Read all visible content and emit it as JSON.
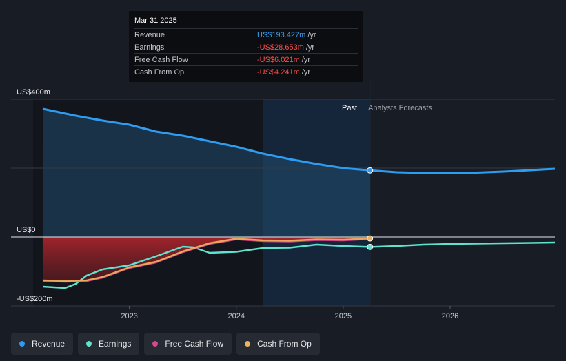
{
  "tooltip": {
    "date": "Mar 31 2025",
    "rows": [
      {
        "name": "Revenue",
        "value": "US$193.427m",
        "unit": "/yr",
        "color": "#3b9ded"
      },
      {
        "name": "Earnings",
        "value": "-US$28.653m",
        "unit": "/yr",
        "color": "#ff4d4d"
      },
      {
        "name": "Free Cash Flow",
        "value": "-US$6.021m",
        "unit": "/yr",
        "color": "#ff4d4d"
      },
      {
        "name": "Cash From Op",
        "value": "-US$4.241m",
        "unit": "/yr",
        "color": "#ff4d4d"
      }
    ]
  },
  "labels": {
    "past": "Past",
    "forecast": "Analysts Forecasts"
  },
  "legend": [
    {
      "label": "Revenue",
      "color": "#2e9cf0"
    },
    {
      "label": "Earnings",
      "color": "#5fe3cf"
    },
    {
      "label": "Free Cash Flow",
      "color": "#d9488f"
    },
    {
      "label": "Cash From Op",
      "color": "#f0b15c"
    }
  ],
  "chart_data": {
    "type": "line",
    "x_unit": "year",
    "xlim": [
      2022.1,
      2026.98
    ],
    "ylim": [
      -200,
      400
    ],
    "y_ticks": [
      {
        "value": 400,
        "label": "US$400m"
      },
      {
        "value": 0,
        "label": "US$0"
      },
      {
        "value": -200,
        "label": "-US$200m"
      }
    ],
    "x_ticks": [
      {
        "value": 2023.0,
        "label": "2023"
      },
      {
        "value": 2024.0,
        "label": "2024"
      },
      {
        "value": 2025.0,
        "label": "2025"
      },
      {
        "value": 2026.0,
        "label": "2026"
      }
    ],
    "past_start": 2024.25,
    "present": 2025.25,
    "series": [
      {
        "name": "Revenue",
        "color": "#2e9cf0",
        "points": [
          [
            2022.19,
            372
          ],
          [
            2022.5,
            352
          ],
          [
            2022.75,
            338
          ],
          [
            2023.0,
            326
          ],
          [
            2023.25,
            306
          ],
          [
            2023.5,
            294
          ],
          [
            2023.75,
            278
          ],
          [
            2024.0,
            262
          ],
          [
            2024.25,
            242
          ],
          [
            2024.5,
            226
          ],
          [
            2024.75,
            212
          ],
          [
            2025.0,
            200
          ],
          [
            2025.25,
            193.4
          ],
          [
            2025.5,
            188
          ],
          [
            2025.75,
            186
          ],
          [
            2026.0,
            186
          ],
          [
            2026.25,
            187
          ],
          [
            2026.5,
            190
          ],
          [
            2026.75,
            194
          ],
          [
            2026.98,
            198
          ]
        ]
      },
      {
        "name": "Earnings",
        "color": "#5fe3cf",
        "points": [
          [
            2022.19,
            -144
          ],
          [
            2022.4,
            -148
          ],
          [
            2022.5,
            -136
          ],
          [
            2022.6,
            -112
          ],
          [
            2022.75,
            -94
          ],
          [
            2023.0,
            -82
          ],
          [
            2023.25,
            -56
          ],
          [
            2023.5,
            -28
          ],
          [
            2023.6,
            -30
          ],
          [
            2023.75,
            -46
          ],
          [
            2024.0,
            -43
          ],
          [
            2024.25,
            -32
          ],
          [
            2024.5,
            -31
          ],
          [
            2024.75,
            -22
          ],
          [
            2025.0,
            -26
          ],
          [
            2025.25,
            -28.7
          ],
          [
            2025.5,
            -26
          ],
          [
            2025.75,
            -22
          ],
          [
            2026.0,
            -20
          ],
          [
            2026.5,
            -18
          ],
          [
            2026.98,
            -16
          ]
        ]
      },
      {
        "name": "Free Cash Flow",
        "color": "#d9488f",
        "points": [
          [
            2022.19,
            -128
          ],
          [
            2022.4,
            -130
          ],
          [
            2022.6,
            -128
          ],
          [
            2022.75,
            -118
          ],
          [
            2023.0,
            -90
          ],
          [
            2023.25,
            -74
          ],
          [
            2023.5,
            -44
          ],
          [
            2023.75,
            -20
          ],
          [
            2024.0,
            -7
          ],
          [
            2024.25,
            -12
          ],
          [
            2024.5,
            -13
          ],
          [
            2024.75,
            -9
          ],
          [
            2025.0,
            -10
          ],
          [
            2025.25,
            -6.0
          ]
        ]
      },
      {
        "name": "Cash From Op",
        "color": "#f0b15c",
        "points": [
          [
            2022.19,
            -126
          ],
          [
            2022.4,
            -128
          ],
          [
            2022.6,
            -126
          ],
          [
            2022.75,
            -116
          ],
          [
            2023.0,
            -88
          ],
          [
            2023.25,
            -72
          ],
          [
            2023.5,
            -42
          ],
          [
            2023.75,
            -18
          ],
          [
            2024.0,
            -5
          ],
          [
            2024.25,
            -10
          ],
          [
            2024.5,
            -11
          ],
          [
            2024.75,
            -7
          ],
          [
            2025.0,
            -8
          ],
          [
            2025.25,
            -4.2
          ]
        ]
      }
    ]
  }
}
